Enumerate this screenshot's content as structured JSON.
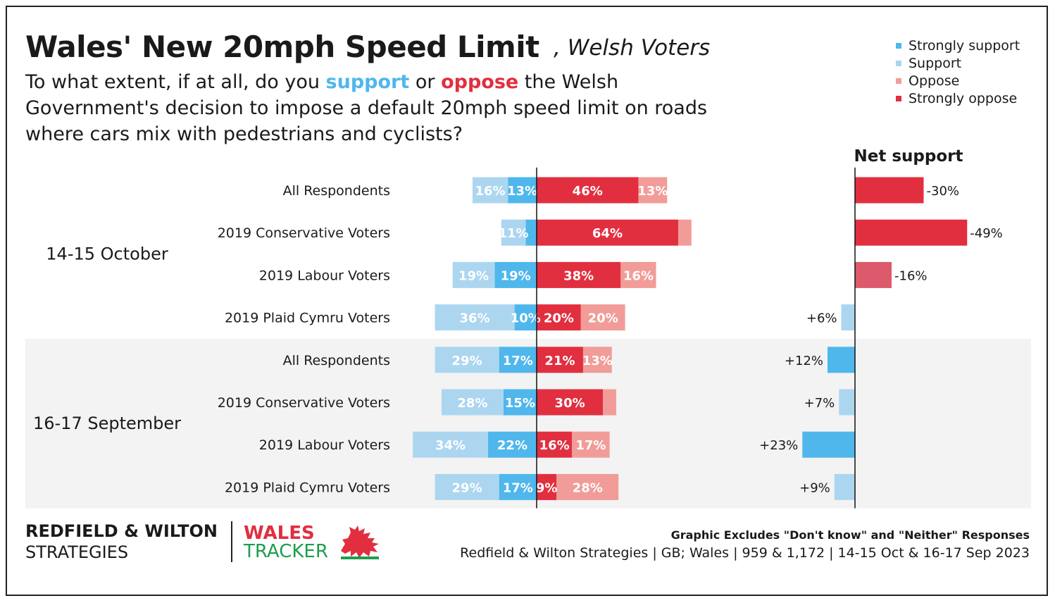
{
  "title": "Wales' New 20mph Speed Limit",
  "subtitle": ", Welsh Voters",
  "question": {
    "before": "To what extent, if at all, do you ",
    "support_word": "support",
    "middle": " or ",
    "oppose_word": "oppose",
    "after": " the Welsh Government's decision to impose a default 20mph speed limit on roads where cars mix with pedestrians and cyclists?"
  },
  "colors": {
    "strongly_support": "#4fb7ec",
    "support": "#acd6f0",
    "oppose": "#f19c98",
    "strongly_oppose": "#e12f3f",
    "net_mid_oppose": "#dc5a6b",
    "group_bg": "#f3f3f3"
  },
  "legend": [
    {
      "label": "Strongly support",
      "color": "#4fb7ec"
    },
    {
      "label": "Support",
      "color": "#acd6f0"
    },
    {
      "label": "Oppose",
      "color": "#f19c98"
    },
    {
      "label": "Strongly oppose",
      "color": "#e12f3f"
    }
  ],
  "chart_data": {
    "type": "bar",
    "orientation": "horizontal-diverging",
    "net_title": "Net support",
    "groups": [
      {
        "label": "14-15 October",
        "shaded": false,
        "rows": [
          {
            "label": "All Respondents",
            "support": 16,
            "strongly_support": 13,
            "strongly_oppose": 46,
            "oppose": 13,
            "net": -30,
            "net_label": "-30%"
          },
          {
            "label": "2019 Conservative Voters",
            "support": 11,
            "strongly_support": 5,
            "strongly_oppose": 64,
            "oppose": 6,
            "net": -49,
            "net_label": "-49%"
          },
          {
            "label": "2019 Labour Voters",
            "support": 19,
            "strongly_support": 19,
            "strongly_oppose": 38,
            "oppose": 16,
            "net": -16,
            "net_label": "-16%"
          },
          {
            "label": "2019 Plaid Cymru Voters",
            "support": 36,
            "strongly_support": 10,
            "strongly_oppose": 20,
            "oppose": 20,
            "net": 6,
            "net_label": "+6%"
          }
        ]
      },
      {
        "label": "16-17 September",
        "shaded": true,
        "rows": [
          {
            "label": "All Respondents",
            "support": 29,
            "strongly_support": 17,
            "strongly_oppose": 21,
            "oppose": 13,
            "net": 12,
            "net_label": "+12%"
          },
          {
            "label": "2019 Conservative Voters",
            "support": 28,
            "strongly_support": 15,
            "strongly_oppose": 30,
            "oppose": 6,
            "net": 7,
            "net_label": "+7%"
          },
          {
            "label": "2019 Labour Voters",
            "support": 34,
            "strongly_support": 22,
            "strongly_oppose": 16,
            "oppose": 17,
            "net": 23,
            "net_label": "+23%"
          },
          {
            "label": "2019 Plaid Cymru Voters",
            "support": 29,
            "strongly_support": 17,
            "strongly_oppose": 9,
            "oppose": 28,
            "net": 9,
            "net_label": "+9%"
          }
        ]
      }
    ]
  },
  "footer": {
    "logo_line1": "REDFIELD & WILTON",
    "logo_line2": "STRATEGIES",
    "wales": "WALES",
    "tracker": "TRACKER",
    "note": "Graphic Excludes \"Don't know\" and \"Neither\" Responses",
    "source": "Redfield & Wilton Strategies | GB; Wales | 959 & 1,172 | 14-15 Oct & 16-17 Sep 2023"
  }
}
